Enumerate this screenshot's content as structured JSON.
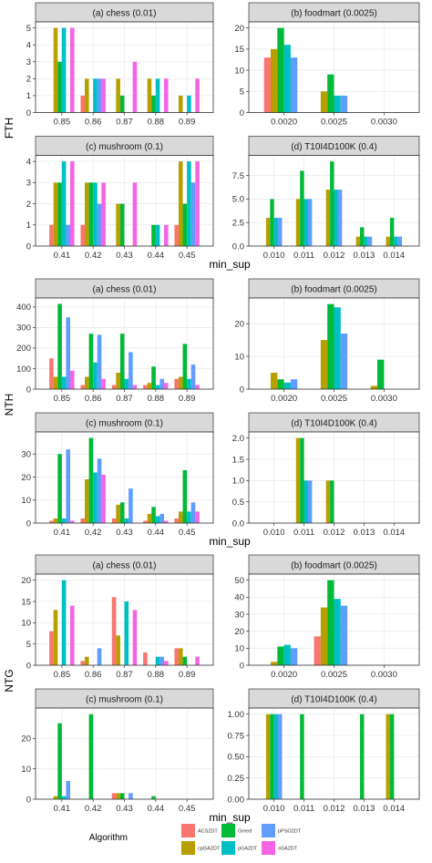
{
  "colors": {
    "ACS2DT": "#F8766D",
    "cpGA2DT": "#B79F00",
    "Greed": "#00BA38",
    "pGA2DT": "#00BFC4",
    "pPSO2DT": "#619CFF",
    "sGA2DT": "#F564E3",
    "strip_bg": "#d9d9d9",
    "panel_border": "#333333",
    "grid": "#ebebeb"
  },
  "legend": {
    "title": "Algorithm",
    "items": [
      "ACS2DT",
      "Greed",
      "pPSO2DT",
      "cpGA2DT",
      "pGA2DT",
      "sGA2DT"
    ]
  },
  "chart_data": [
    {
      "type": "bar",
      "ylabel": "FTH",
      "xlabel": "min_sup",
      "panels": [
        {
          "title": "(a) chess (0.01)",
          "categories": [
            "0.85",
            "0.86",
            "0.87",
            "0.88",
            "0.89"
          ],
          "yticks": [
            0,
            1,
            2,
            3,
            4,
            5
          ],
          "ylim": [
            0,
            5.25
          ],
          "series": [
            {
              "name": "ACS2DT",
              "values": [
                0,
                1,
                0,
                0,
                0
              ]
            },
            {
              "name": "cpGA2DT",
              "values": [
                5,
                2,
                2,
                2,
                1
              ]
            },
            {
              "name": "Greed",
              "values": [
                3,
                0,
                1,
                1,
                0
              ]
            },
            {
              "name": "pGA2DT",
              "values": [
                5,
                2,
                0,
                2,
                1
              ]
            },
            {
              "name": "pPSO2DT",
              "values": [
                0,
                2,
                0,
                0,
                0
              ]
            },
            {
              "name": "sGA2DT",
              "values": [
                5,
                2,
                3,
                2,
                2
              ]
            }
          ]
        },
        {
          "title": "(b) foodmart (0.0025)",
          "categories": [
            "0.0020",
            "0.0025",
            "0.0030"
          ],
          "yticks": [
            0,
            5,
            10,
            15,
            20
          ],
          "ylim": [
            0,
            21
          ],
          "series": [
            {
              "name": "ACS2DT",
              "values": [
                13,
                0,
                0
              ]
            },
            {
              "name": "cpGA2DT",
              "values": [
                15,
                5,
                0
              ]
            },
            {
              "name": "Greed",
              "values": [
                20,
                9,
                0
              ]
            },
            {
              "name": "pGA2DT",
              "values": [
                16,
                4,
                0
              ]
            },
            {
              "name": "pPSO2DT",
              "values": [
                13,
                4,
                0
              ]
            },
            {
              "name": "sGA2DT",
              "values": [
                0,
                0,
                0
              ]
            }
          ]
        },
        {
          "title": "(c) mushroom (0.1)",
          "categories": [
            "0.41",
            "0.42",
            "0.43",
            "0.44",
            "0.45"
          ],
          "yticks": [
            0,
            1,
            2,
            3,
            4
          ],
          "ylim": [
            0,
            4.2
          ],
          "series": [
            {
              "name": "ACS2DT",
              "values": [
                1,
                1,
                0,
                0,
                1
              ]
            },
            {
              "name": "cpGA2DT",
              "values": [
                3,
                3,
                2,
                0,
                4
              ]
            },
            {
              "name": "Greed",
              "values": [
                3,
                3,
                2,
                1,
                2
              ]
            },
            {
              "name": "pGA2DT",
              "values": [
                4,
                3,
                0,
                1,
                4
              ]
            },
            {
              "name": "pPSO2DT",
              "values": [
                1,
                2,
                0,
                0,
                3
              ]
            },
            {
              "name": "sGA2DT",
              "values": [
                4,
                3,
                3,
                1,
                4
              ]
            }
          ]
        },
        {
          "title": "(d) T10I4D100K (0.4)",
          "categories": [
            "0.010",
            "0.011",
            "0.012",
            "0.013",
            "0.014"
          ],
          "yticks": [
            0,
            2.5,
            5,
            7.5
          ],
          "yticklabels": [
            "0.0",
            "2.5",
            "5.0",
            "7.5"
          ],
          "ylim": [
            0,
            9.45
          ],
          "series": [
            {
              "name": "ACS2DT",
              "values": [
                0,
                0,
                0,
                0,
                0
              ]
            },
            {
              "name": "cpGA2DT",
              "values": [
                3,
                5,
                6,
                1,
                1
              ]
            },
            {
              "name": "Greed",
              "values": [
                5,
                8,
                9,
                2,
                3
              ]
            },
            {
              "name": "pGA2DT",
              "values": [
                3,
                5,
                6,
                1,
                1
              ]
            },
            {
              "name": "pPSO2DT",
              "values": [
                3,
                5,
                6,
                1,
                1
              ]
            },
            {
              "name": "sGA2DT",
              "values": [
                0,
                0,
                0,
                0,
                0
              ]
            }
          ]
        }
      ]
    },
    {
      "type": "bar",
      "ylabel": "NTH",
      "xlabel": "min_sup",
      "panels": [
        {
          "title": "(a) chess (0.01)",
          "categories": [
            "0.85",
            "0.86",
            "0.87",
            "0.88",
            "0.89"
          ],
          "yticks": [
            0,
            100,
            200,
            300,
            400
          ],
          "ylim": [
            0,
            435
          ],
          "series": [
            {
              "name": "ACS2DT",
              "values": [
                150,
                20,
                20,
                20,
                50
              ]
            },
            {
              "name": "cpGA2DT",
              "values": [
                60,
                60,
                80,
                30,
                60
              ]
            },
            {
              "name": "Greed",
              "values": [
                415,
                270,
                270,
                110,
                220
              ]
            },
            {
              "name": "pGA2DT",
              "values": [
                60,
                130,
                50,
                20,
                50
              ]
            },
            {
              "name": "pPSO2DT",
              "values": [
                350,
                265,
                180,
                50,
                120
              ]
            },
            {
              "name": "sGA2DT",
              "values": [
                90,
                50,
                20,
                30,
                20
              ]
            }
          ]
        },
        {
          "title": "(b) foodmart (0.0025)",
          "categories": [
            "0.0020",
            "0.0025",
            "0.0030"
          ],
          "yticks": [
            0,
            10,
            20
          ],
          "ylim": [
            0,
            27.3
          ],
          "series": [
            {
              "name": "ACS2DT",
              "values": [
                0,
                0,
                0
              ]
            },
            {
              "name": "cpGA2DT",
              "values": [
                5,
                15,
                1
              ]
            },
            {
              "name": "Greed",
              "values": [
                3,
                26,
                9
              ]
            },
            {
              "name": "pGA2DT",
              "values": [
                2,
                25,
                0
              ]
            },
            {
              "name": "pPSO2DT",
              "values": [
                3,
                17,
                0
              ]
            },
            {
              "name": "sGA2DT",
              "values": [
                0,
                0,
                0
              ]
            }
          ]
        },
        {
          "title": "(c) mushroom (0.1)",
          "categories": [
            "0.41",
            "0.42",
            "0.43",
            "0.44",
            "0.45"
          ],
          "yticks": [
            0,
            10,
            20,
            30
          ],
          "ylim": [
            0,
            38.8
          ],
          "series": [
            {
              "name": "ACS2DT",
              "values": [
                1,
                2,
                2,
                1,
                2
              ]
            },
            {
              "name": "cpGA2DT",
              "values": [
                2,
                19,
                8,
                4,
                5
              ]
            },
            {
              "name": "Greed",
              "values": [
                30,
                37,
                9,
                7,
                23
              ]
            },
            {
              "name": "pGA2DT",
              "values": [
                2,
                22,
                2,
                3,
                5
              ]
            },
            {
              "name": "pPSO2DT",
              "values": [
                32,
                28,
                15,
                4,
                9
              ]
            },
            {
              "name": "sGA2DT",
              "values": [
                1,
                21,
                0,
                1,
                5
              ]
            }
          ]
        },
        {
          "title": "(d) T10I4D100K (0.4)",
          "categories": [
            "0.010",
            "0.011",
            "0.012",
            "0.013",
            "0.014"
          ],
          "yticks": [
            0,
            0.5,
            1,
            1.5,
            2
          ],
          "yticklabels": [
            "0.0",
            "0.5",
            "1.0",
            "1.5",
            "2.0"
          ],
          "ylim": [
            0,
            2.1
          ],
          "series": [
            {
              "name": "ACS2DT",
              "values": [
                0,
                0,
                0,
                0,
                0
              ]
            },
            {
              "name": "cpGA2DT",
              "values": [
                0,
                2,
                1,
                0,
                0
              ]
            },
            {
              "name": "Greed",
              "values": [
                0,
                2,
                1,
                0,
                0
              ]
            },
            {
              "name": "pGA2DT",
              "values": [
                0,
                1,
                0,
                0,
                0
              ]
            },
            {
              "name": "pPSO2DT",
              "values": [
                0,
                1,
                0,
                0,
                0
              ]
            },
            {
              "name": "sGA2DT",
              "values": [
                0,
                0,
                0,
                0,
                0
              ]
            }
          ]
        }
      ]
    },
    {
      "type": "bar",
      "ylabel": "NTG",
      "xlabel": "min_sup",
      "panels": [
        {
          "title": "(a) chess (0.01)",
          "categories": [
            "0.85",
            "0.86",
            "0.87",
            "0.88",
            "0.89"
          ],
          "yticks": [
            0,
            5,
            10,
            15,
            20
          ],
          "ylim": [
            0,
            21
          ],
          "series": [
            {
              "name": "ACS2DT",
              "values": [
                8,
                1,
                16,
                3,
                4
              ]
            },
            {
              "name": "cpGA2DT",
              "values": [
                13,
                2,
                7,
                0,
                4
              ]
            },
            {
              "name": "Greed",
              "values": [
                0,
                0,
                0,
                0,
                2
              ]
            },
            {
              "name": "pGA2DT",
              "values": [
                20,
                0,
                15,
                2,
                0
              ]
            },
            {
              "name": "pPSO2DT",
              "values": [
                0,
                4,
                0,
                2,
                0
              ]
            },
            {
              "name": "sGA2DT",
              "values": [
                14,
                0,
                13,
                1,
                2
              ]
            }
          ]
        },
        {
          "title": "(b) foodmart (0.0025)",
          "categories": [
            "0.0020",
            "0.0025",
            "0.0030"
          ],
          "yticks": [
            0,
            10,
            20,
            30,
            40,
            50
          ],
          "ylim": [
            0,
            52.5
          ],
          "series": [
            {
              "name": "ACS2DT",
              "values": [
                0,
                17,
                0
              ]
            },
            {
              "name": "cpGA2DT",
              "values": [
                2,
                34,
                0
              ]
            },
            {
              "name": "Greed",
              "values": [
                11,
                50,
                0
              ]
            },
            {
              "name": "pGA2DT",
              "values": [
                12,
                39,
                0
              ]
            },
            {
              "name": "pPSO2DT",
              "values": [
                10,
                35,
                0
              ]
            },
            {
              "name": "sGA2DT",
              "values": [
                0,
                0,
                0
              ]
            }
          ]
        },
        {
          "title": "(c) mushroom (0.1)",
          "categories": [
            "0.41",
            "0.42",
            "0.43",
            "0.44",
            "0.45"
          ],
          "yticks": [
            0,
            10,
            20
          ],
          "ylim": [
            0,
            29.4
          ],
          "series": [
            {
              "name": "ACS2DT",
              "values": [
                0,
                0,
                2,
                0,
                0
              ]
            },
            {
              "name": "cpGA2DT",
              "values": [
                1,
                0,
                2,
                0,
                0
              ]
            },
            {
              "name": "Greed",
              "values": [
                25,
                28,
                2,
                1,
                0
              ]
            },
            {
              "name": "pGA2DT",
              "values": [
                1,
                0,
                0,
                0,
                0
              ]
            },
            {
              "name": "pPSO2DT",
              "values": [
                6,
                0,
                2,
                0,
                0
              ]
            },
            {
              "name": "sGA2DT",
              "values": [
                0,
                0,
                0,
                0,
                0
              ]
            }
          ]
        },
        {
          "title": "(d) T10I4D100K (0.4)",
          "categories": [
            "0.010",
            "0.011",
            "0.012",
            "0.013",
            "0.014"
          ],
          "yticks": [
            0,
            0.25,
            0.5,
            0.75,
            1
          ],
          "yticklabels": [
            "0.00",
            "0.25",
            "0.50",
            "0.75",
            "1.00"
          ],
          "ylim": [
            0,
            1.05
          ],
          "series": [
            {
              "name": "ACS2DT",
              "values": [
                0,
                0,
                0,
                0,
                0
              ]
            },
            {
              "name": "cpGA2DT",
              "values": [
                1,
                0,
                0,
                0,
                1
              ]
            },
            {
              "name": "Greed",
              "values": [
                1,
                1,
                0,
                1,
                1
              ]
            },
            {
              "name": "pGA2DT",
              "values": [
                1,
                0,
                0,
                0,
                0
              ]
            },
            {
              "name": "pPSO2DT",
              "values": [
                1,
                0,
                0,
                0,
                0
              ]
            },
            {
              "name": "sGA2DT",
              "values": [
                0,
                0,
                0,
                0,
                0
              ]
            }
          ]
        }
      ]
    }
  ]
}
